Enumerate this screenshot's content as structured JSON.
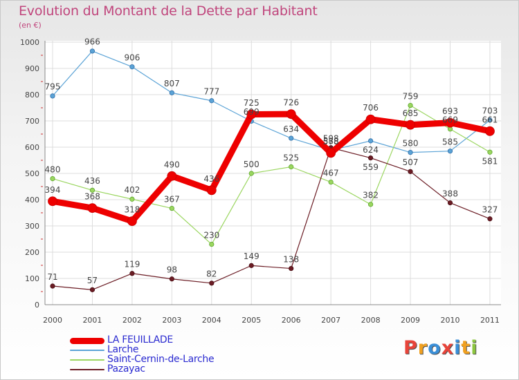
{
  "header": {
    "title": "Evolution du Montant de la Dette par Habitant",
    "subtitle": "(en €)"
  },
  "brand": {
    "letters": [
      "P",
      "r",
      "o",
      "x",
      "i",
      "t",
      "i"
    ],
    "colors": [
      "#e8443a",
      "#f0a020",
      "#3a8fd8",
      "#e8443a",
      "#3a8fd8",
      "#f0a020",
      "#8cc63f"
    ]
  },
  "chart_data": {
    "type": "line",
    "title": "Evolution du Montant de la Dette par Habitant",
    "subtitle": "(en €)",
    "x": [
      2000,
      2001,
      2002,
      2003,
      2004,
      2005,
      2006,
      2007,
      2008,
      2009,
      2010,
      2011
    ],
    "x_tick_labels": [
      "2000",
      "2001",
      "2002",
      "2003",
      "2004",
      "2005",
      "2006",
      "2007",
      "2008",
      "2009",
      "2010",
      "2011"
    ],
    "ylim": [
      0,
      1000
    ],
    "y_ticks": [
      0,
      100,
      200,
      300,
      400,
      500,
      600,
      700,
      800,
      900,
      1000
    ],
    "y_tick_labels": [
      "0",
      "100",
      "200",
      "300",
      "400",
      "500",
      "600",
      "700",
      "800",
      "900",
      "1000"
    ],
    "grid": true,
    "legend_position": "bottom-left",
    "series": [
      {
        "name": "Larche",
        "color": "#5ba3d6",
        "values": [
          795,
          966,
          906,
          807,
          777,
          699,
          634,
          588,
          624,
          580,
          585,
          703
        ],
        "labels": [
          "795",
          "966",
          "906",
          "807",
          "777",
          "699",
          "634",
          "588",
          "624",
          "580",
          "585",
          "703"
        ]
      },
      {
        "name": "Saint-Cernin-de-Larche",
        "color": "#9bd660",
        "values": [
          480,
          436,
          402,
          367,
          230,
          500,
          525,
          467,
          382,
          759,
          669,
          581
        ],
        "labels": [
          "480",
          "436",
          "402",
          "367",
          "230",
          "500",
          "525",
          "467",
          "382",
          "759",
          "669",
          "581"
        ]
      },
      {
        "name": "Pazayac",
        "color": "#6b1c24",
        "values": [
          71,
          57,
          119,
          98,
          82,
          149,
          138,
          598,
          559,
          507,
          388,
          327
        ],
        "labels": [
          "71",
          "57",
          "119",
          "98",
          "82",
          "149",
          "138",
          "598",
          "559",
          "507",
          "388",
          "327"
        ]
      },
      {
        "name": "LA FEUILLADE",
        "color": "#ee0000",
        "values": [
          394,
          368,
          318,
          490,
          436,
          725,
          726,
          578,
          706,
          685,
          693,
          661
        ],
        "labels": [
          "394",
          "368",
          "318",
          "490",
          "436",
          "725",
          "726",
          "578",
          "706",
          "685",
          "693",
          "661"
        ]
      }
    ],
    "legend_order": [
      "LA FEUILLADE",
      "Larche",
      "Saint-Cernin-de-Larche",
      "Pazayac"
    ]
  }
}
